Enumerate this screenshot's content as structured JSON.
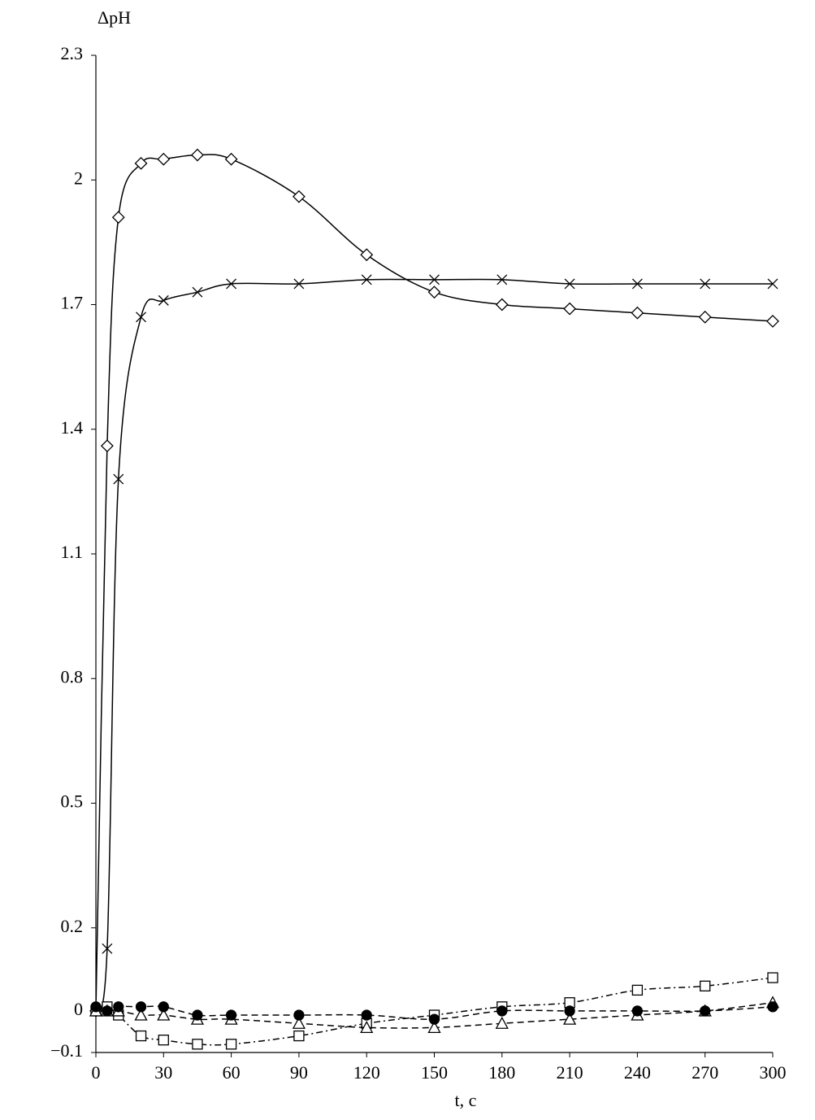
{
  "chart_data": {
    "type": "line",
    "ylabel": "ΔpH",
    "xlabel": "t, c",
    "x": [
      0,
      5,
      10,
      20,
      30,
      45,
      60,
      90,
      120,
      150,
      180,
      210,
      240,
      270,
      300
    ],
    "xlim": [
      0,
      300
    ],
    "xticks": [
      0,
      30,
      60,
      90,
      120,
      150,
      180,
      210,
      240,
      270,
      300
    ],
    "ylim": [
      -0.1,
      2.3
    ],
    "yticks": [
      {
        "value": -0.1,
        "label": "−0.1"
      },
      0,
      0.2,
      0.5,
      0.8,
      1.1,
      1.4,
      1.7,
      2,
      2.3
    ],
    "smooth": true,
    "series": [
      {
        "color": "#000000",
        "marker": "diamond",
        "dash": "solid",
        "values": [
          0,
          1.36,
          1.91,
          2.04,
          2.05,
          2.06,
          2.05,
          1.96,
          1.82,
          1.73,
          1.7,
          1.69,
          1.68,
          1.67,
          1.66
        ]
      },
      {
        "color": "#000000",
        "marker": "cross",
        "dash": "solid",
        "values": [
          0,
          0.15,
          1.28,
          1.67,
          1.71,
          1.73,
          1.75,
          1.75,
          1.76,
          1.76,
          1.76,
          1.75,
          1.75,
          1.75,
          1.75
        ]
      },
      {
        "color": "#000000",
        "marker": "square",
        "dash": "dashdot",
        "values": [
          0,
          0.01,
          -0.01,
          -0.06,
          -0.07,
          -0.08,
          -0.08,
          -0.06,
          -0.03,
          -0.01,
          0.01,
          0.02,
          0.05,
          0.06,
          0.08
        ]
      },
      {
        "color": "#000000",
        "marker": "triangle",
        "dash": "dashed",
        "values": [
          0,
          0,
          0,
          -0.01,
          -0.01,
          -0.02,
          -0.02,
          -0.03,
          -0.04,
          -0.04,
          -0.03,
          -0.02,
          -0.01,
          0,
          0.02
        ]
      },
      {
        "color": "#000000",
        "marker": "circle",
        "dash": "dashed",
        "values": [
          0.01,
          0,
          0.01,
          0.01,
          0.01,
          -0.01,
          -0.01,
          -0.01,
          -0.01,
          -0.02,
          0,
          0,
          0,
          0,
          0.01
        ]
      }
    ]
  }
}
